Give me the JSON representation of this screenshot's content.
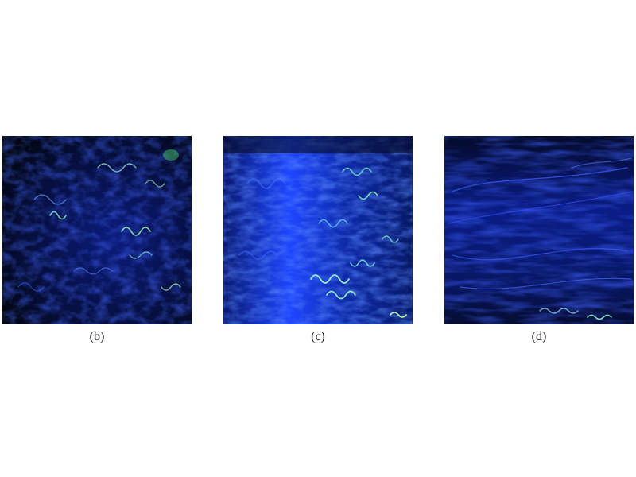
{
  "figure": {
    "panels": [
      {
        "id": "b",
        "caption": "(b)"
      },
      {
        "id": "c",
        "caption": "(c)"
      },
      {
        "id": "d",
        "caption": "(d)"
      }
    ]
  },
  "colors": {
    "background": "#ffffff",
    "tissue_dark": "#03071a",
    "collagen_blue": "#1c3cff",
    "elastin_green": "#5dff8a",
    "caption_text": "#111111"
  }
}
